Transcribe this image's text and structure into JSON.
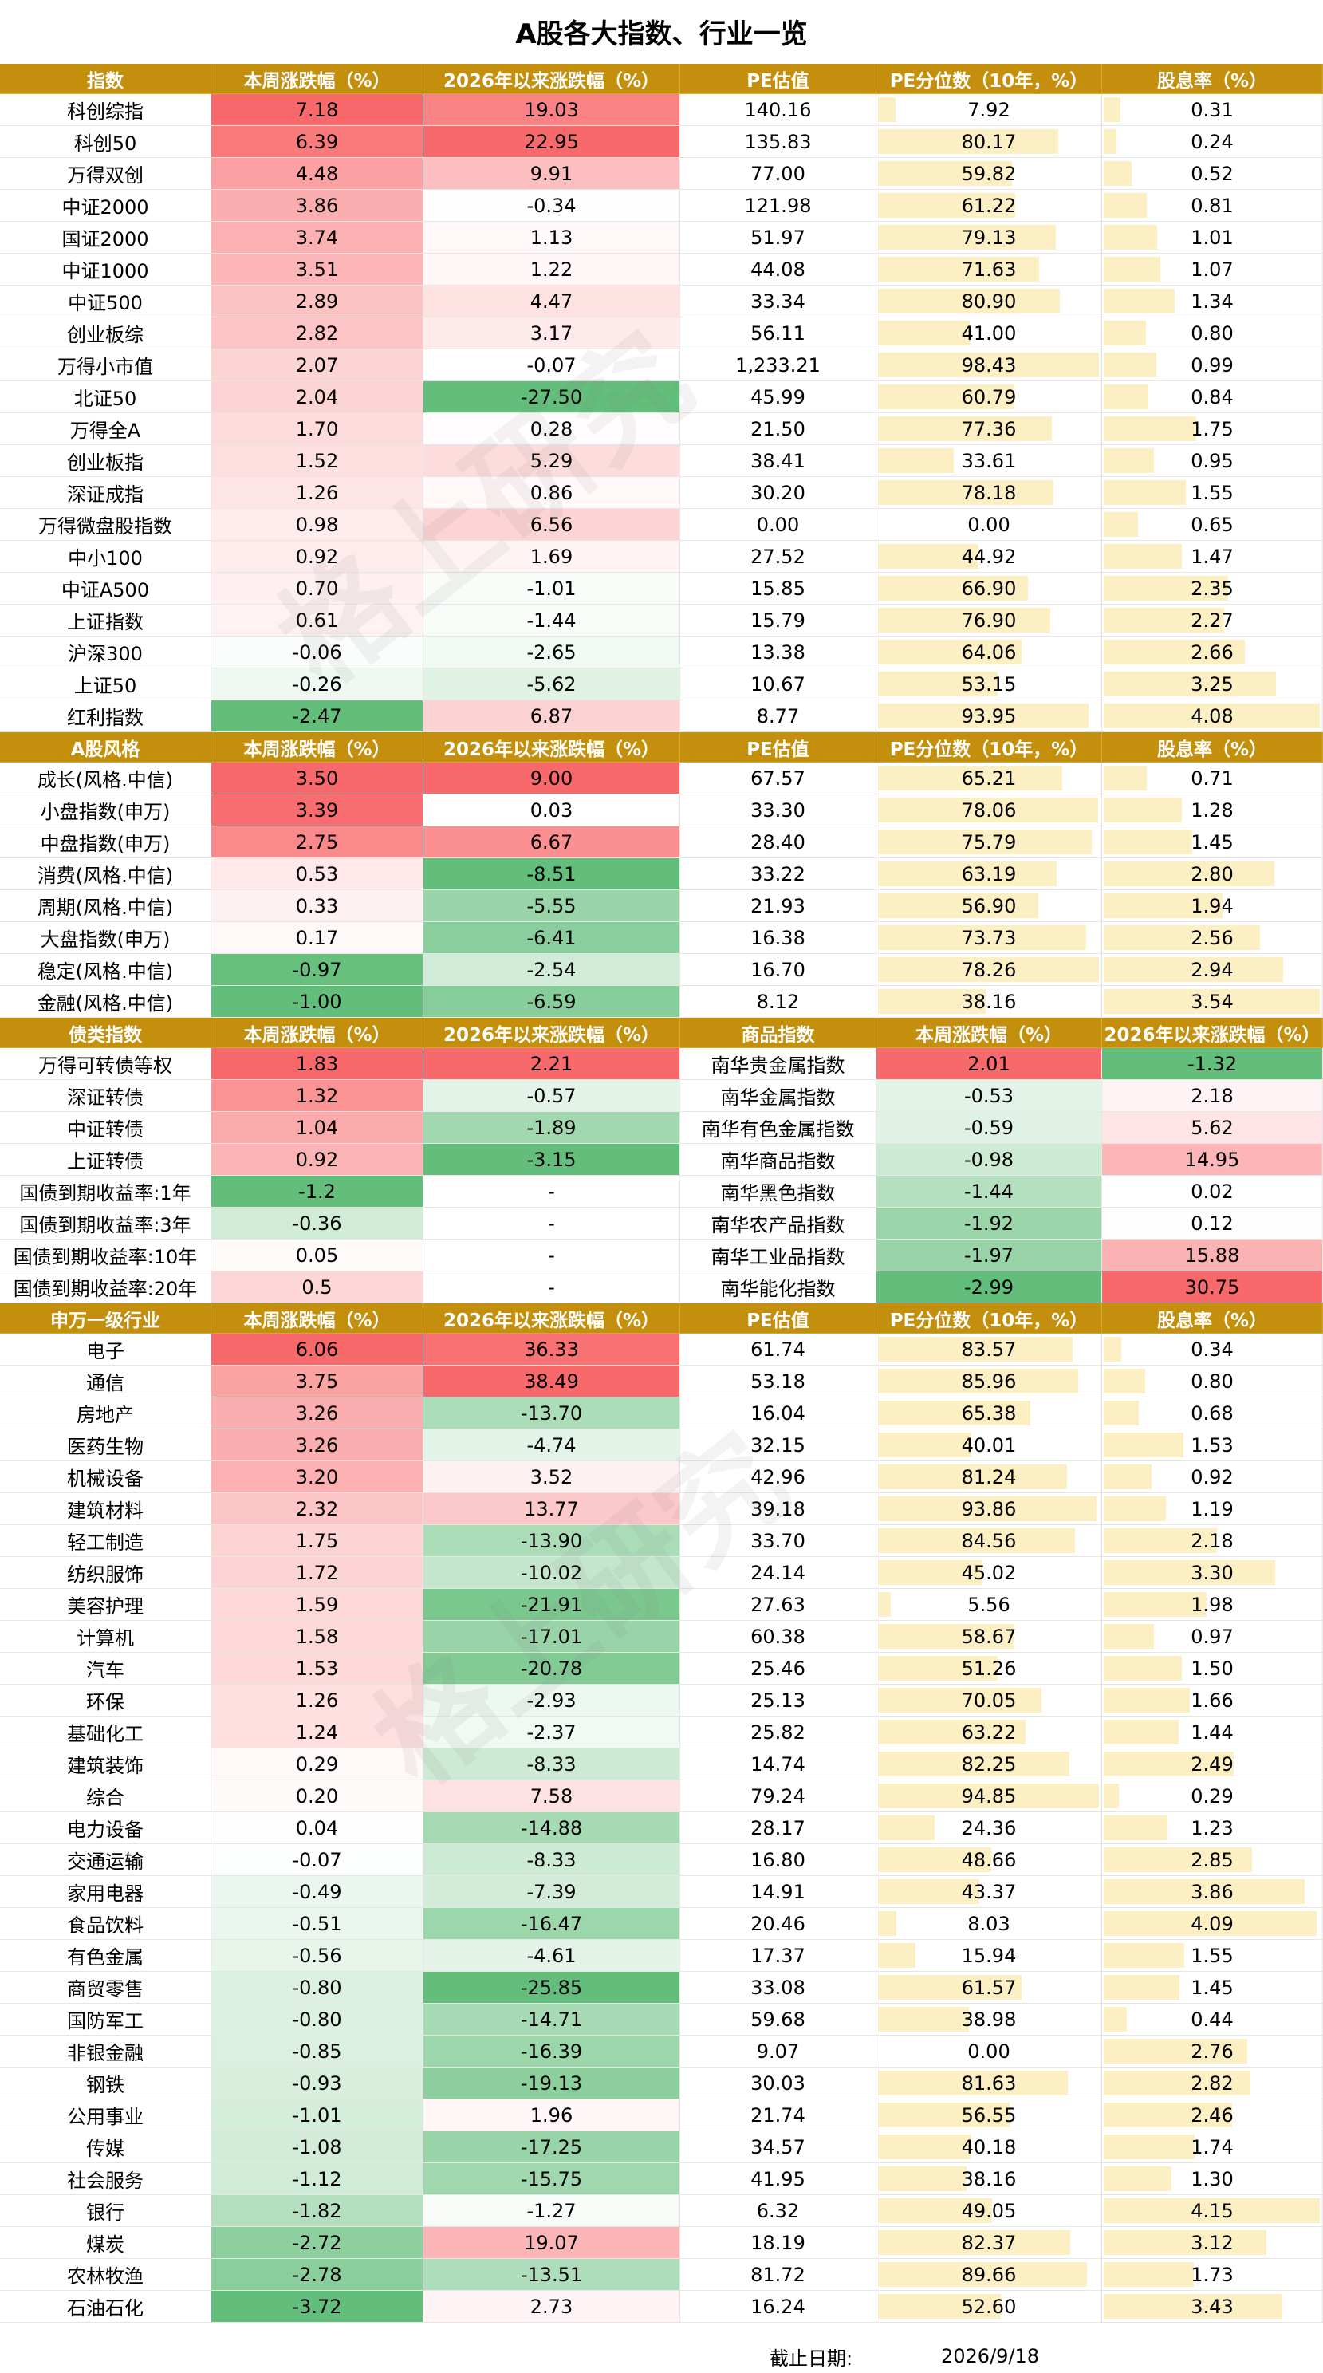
{
  "title": "A股各大指数、行业一览",
  "watermark": "格上研究",
  "footer": {
    "label": "截止日期:",
    "date": "2026/9/18"
  },
  "colors": {
    "header_bg": "#c48f0c",
    "header_text": "#ffffff",
    "up": "#f8696b",
    "down": "#63be7b",
    "pe_bar": "#fdefc4"
  },
  "sections": [
    {
      "id": "indices",
      "headers": [
        "指数",
        "本周涨跌幅（%）",
        "2026年以来涨跌幅（%）",
        "PE估值",
        "PE分位数（10年，%）",
        "股息率（%）"
      ],
      "rows": [
        [
          "科创综指",
          "7.18",
          "19.03",
          "140.16",
          "7.92",
          "0.31"
        ],
        [
          "科创50",
          "6.39",
          "22.95",
          "135.83",
          "80.17",
          "0.24"
        ],
        [
          "万得双创",
          "4.48",
          "9.91",
          "77.00",
          "59.82",
          "0.52"
        ],
        [
          "中证2000",
          "3.86",
          "-0.34",
          "121.98",
          "61.22",
          "0.81"
        ],
        [
          "国证2000",
          "3.74",
          "1.13",
          "51.97",
          "79.13",
          "1.01"
        ],
        [
          "中证1000",
          "3.51",
          "1.22",
          "44.08",
          "71.63",
          "1.07"
        ],
        [
          "中证500",
          "2.89",
          "4.47",
          "33.34",
          "80.90",
          "1.34"
        ],
        [
          "创业板综",
          "2.82",
          "3.17",
          "56.11",
          "41.00",
          "0.80"
        ],
        [
          "万得小市值",
          "2.07",
          "-0.07",
          "1,233.21",
          "98.43",
          "0.99"
        ],
        [
          "北证50",
          "2.04",
          "-27.50",
          "45.99",
          "60.79",
          "0.84"
        ],
        [
          "万得全A",
          "1.70",
          "0.28",
          "21.50",
          "77.36",
          "1.75"
        ],
        [
          "创业板指",
          "1.52",
          "5.29",
          "38.41",
          "33.61",
          "0.95"
        ],
        [
          "深证成指",
          "1.26",
          "0.86",
          "30.20",
          "78.18",
          "1.55"
        ],
        [
          "万得微盘股指数",
          "0.98",
          "6.56",
          "0.00",
          "0.00",
          "0.65"
        ],
        [
          "中小100",
          "0.92",
          "1.69",
          "27.52",
          "44.92",
          "1.47"
        ],
        [
          "中证A500",
          "0.70",
          "-1.01",
          "15.85",
          "66.90",
          "2.35"
        ],
        [
          "上证指数",
          "0.61",
          "-1.44",
          "15.79",
          "76.90",
          "2.27"
        ],
        [
          "沪深300",
          "-0.06",
          "-2.65",
          "13.38",
          "64.06",
          "2.66"
        ],
        [
          "上证50",
          "-0.26",
          "-5.62",
          "10.67",
          "53.15",
          "3.25"
        ],
        [
          "红利指数",
          "-2.47",
          "6.87",
          "8.77",
          "93.95",
          "4.08"
        ]
      ]
    },
    {
      "id": "styles",
      "headers": [
        "A股风格",
        "本周涨跌幅（%）",
        "2026年以来涨跌幅（%）",
        "PE估值",
        "PE分位数（10年，%）",
        "股息率（%）"
      ],
      "rows": [
        [
          "成长(风格.中信)",
          "3.50",
          "9.00",
          "67.57",
          "65.21",
          "0.71"
        ],
        [
          "小盘指数(申万)",
          "3.39",
          "0.03",
          "33.30",
          "78.06",
          "1.28"
        ],
        [
          "中盘指数(申万)",
          "2.75",
          "6.67",
          "28.40",
          "75.79",
          "1.45"
        ],
        [
          "消费(风格.中信)",
          "0.53",
          "-8.51",
          "33.22",
          "63.19",
          "2.80"
        ],
        [
          "周期(风格.中信)",
          "0.33",
          "-5.55",
          "21.93",
          "56.90",
          "1.94"
        ],
        [
          "大盘指数(申万)",
          "0.17",
          "-6.41",
          "16.38",
          "73.73",
          "2.56"
        ],
        [
          "稳定(风格.中信)",
          "-0.97",
          "-2.54",
          "16.70",
          "78.26",
          "2.94"
        ],
        [
          "金融(风格.中信)",
          "-1.00",
          "-6.59",
          "8.12",
          "38.16",
          "3.54"
        ]
      ]
    },
    {
      "id": "bonds_commodities",
      "headers": [
        "债类指数",
        "本周涨跌幅（%）",
        "2026年以来涨跌幅（%）",
        "商品指数",
        "本周涨跌幅（%）",
        "2026年以来涨跌幅（%）"
      ],
      "rows": [
        [
          "万得可转债等权",
          "1.83",
          "2.21",
          "南华贵金属指数",
          "2.01",
          "-1.32"
        ],
        [
          "深证转债",
          "1.32",
          "-0.57",
          "南华金属指数",
          "-0.53",
          "2.18"
        ],
        [
          "中证转债",
          "1.04",
          "-1.89",
          "南华有色金属指数",
          "-0.59",
          "5.62"
        ],
        [
          "上证转债",
          "0.92",
          "-3.15",
          "南华商品指数",
          "-0.98",
          "14.95"
        ],
        [
          "国债到期收益率:1年",
          "-1.2",
          "-",
          "南华黑色指数",
          "-1.44",
          "0.02"
        ],
        [
          "国债到期收益率:3年",
          "-0.36",
          "-",
          "南华农产品指数",
          "-1.92",
          "0.12"
        ],
        [
          "国债到期收益率:10年",
          "0.05",
          "-",
          "南华工业品指数",
          "-1.97",
          "15.88"
        ],
        [
          "国债到期收益率:20年",
          "0.5",
          "-",
          "南华能化指数",
          "-2.99",
          "30.75"
        ]
      ]
    },
    {
      "id": "industries",
      "headers": [
        "申万一级行业",
        "本周涨跌幅（%）",
        "2026年以来涨跌幅（%）",
        "PE估值",
        "PE分位数（10年，%）",
        "股息率（%）"
      ],
      "rows": [
        [
          "电子",
          "6.06",
          "36.33",
          "61.74",
          "83.57",
          "0.34"
        ],
        [
          "通信",
          "3.75",
          "38.49",
          "53.18",
          "85.96",
          "0.80"
        ],
        [
          "房地产",
          "3.26",
          "-13.70",
          "16.04",
          "65.38",
          "0.68"
        ],
        [
          "医药生物",
          "3.26",
          "-4.74",
          "32.15",
          "40.01",
          "1.53"
        ],
        [
          "机械设备",
          "3.20",
          "3.52",
          "42.96",
          "81.24",
          "0.92"
        ],
        [
          "建筑材料",
          "2.32",
          "13.77",
          "39.18",
          "93.86",
          "1.19"
        ],
        [
          "轻工制造",
          "1.75",
          "-13.90",
          "33.70",
          "84.56",
          "2.18"
        ],
        [
          "纺织服饰",
          "1.72",
          "-10.02",
          "24.14",
          "45.02",
          "3.30"
        ],
        [
          "美容护理",
          "1.59",
          "-21.91",
          "27.63",
          "5.56",
          "1.98"
        ],
        [
          "计算机",
          "1.58",
          "-17.01",
          "60.38",
          "58.67",
          "0.97"
        ],
        [
          "汽车",
          "1.53",
          "-20.78",
          "25.46",
          "51.26",
          "1.50"
        ],
        [
          "环保",
          "1.26",
          "-2.93",
          "25.13",
          "70.05",
          "1.66"
        ],
        [
          "基础化工",
          "1.24",
          "-2.37",
          "25.82",
          "63.22",
          "1.44"
        ],
        [
          "建筑装饰",
          "0.29",
          "-8.33",
          "14.74",
          "82.25",
          "2.49"
        ],
        [
          "综合",
          "0.20",
          "7.58",
          "79.24",
          "94.85",
          "0.29"
        ],
        [
          "电力设备",
          "0.04",
          "-14.88",
          "28.17",
          "24.36",
          "1.23"
        ],
        [
          "交通运输",
          "-0.07",
          "-8.33",
          "16.80",
          "48.66",
          "2.85"
        ],
        [
          "家用电器",
          "-0.49",
          "-7.39",
          "14.91",
          "43.37",
          "3.86"
        ],
        [
          "食品饮料",
          "-0.51",
          "-16.47",
          "20.46",
          "8.03",
          "4.09"
        ],
        [
          "有色金属",
          "-0.56",
          "-4.61",
          "17.37",
          "15.94",
          "1.55"
        ],
        [
          "商贸零售",
          "-0.80",
          "-25.85",
          "33.08",
          "61.57",
          "1.45"
        ],
        [
          "国防军工",
          "-0.80",
          "-14.71",
          "59.68",
          "38.98",
          "0.44"
        ],
        [
          "非银金融",
          "-0.85",
          "-16.39",
          "9.07",
          "0.00",
          "2.76"
        ],
        [
          "钢铁",
          "-0.93",
          "-19.13",
          "30.03",
          "81.63",
          "2.82"
        ],
        [
          "公用事业",
          "-1.01",
          "1.96",
          "21.74",
          "56.55",
          "2.46"
        ],
        [
          "传媒",
          "-1.08",
          "-17.25",
          "34.57",
          "40.18",
          "1.74"
        ],
        [
          "社会服务",
          "-1.12",
          "-15.75",
          "41.95",
          "38.16",
          "1.30"
        ],
        [
          "银行",
          "-1.82",
          "-1.27",
          "6.32",
          "49.05",
          "4.15"
        ],
        [
          "煤炭",
          "-2.72",
          "19.07",
          "18.19",
          "82.37",
          "3.12"
        ],
        [
          "农林牧渔",
          "-2.78",
          "-13.51",
          "81.72",
          "89.66",
          "1.73"
        ],
        [
          "石油石化",
          "-3.72",
          "2.73",
          "16.24",
          "52.60",
          "3.43"
        ]
      ]
    }
  ]
}
